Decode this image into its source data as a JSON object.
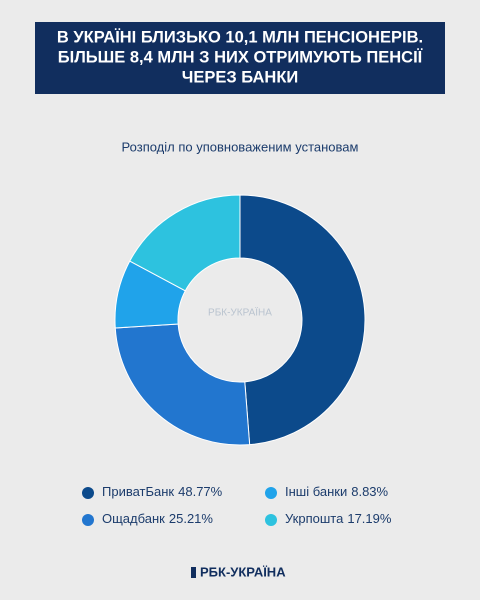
{
  "chart_data": {
    "type": "donut",
    "title": [
      "В УКРАЇНІ БЛИЗЬКО 10,1 МЛН ПЕНСІОНЕРІВ.",
      "БІЛЬШЕ 8,4 МЛН З НИХ ОТРИМУЮТЬ ПЕНСІЇ",
      "ЧЕРЕЗ БАНКИ"
    ],
    "subtitle": "Розподіл по уповноваженим установам",
    "categories": [
      "ПриватБанк",
      "Ощадбанк",
      "Інші банки",
      "Укрпошта"
    ],
    "values": [
      48.77,
      25.21,
      8.83,
      17.19
    ],
    "value_labels": [
      "48.77%",
      "25.21%",
      "8.83%",
      "17.19%"
    ],
    "colors": [
      "#0c4a8b",
      "#2276cf",
      "#20a3ea",
      "#2dc2df"
    ],
    "watermark": "РБК-УКРАЇНА",
    "footer": "РБК-УКРАЇНА"
  }
}
